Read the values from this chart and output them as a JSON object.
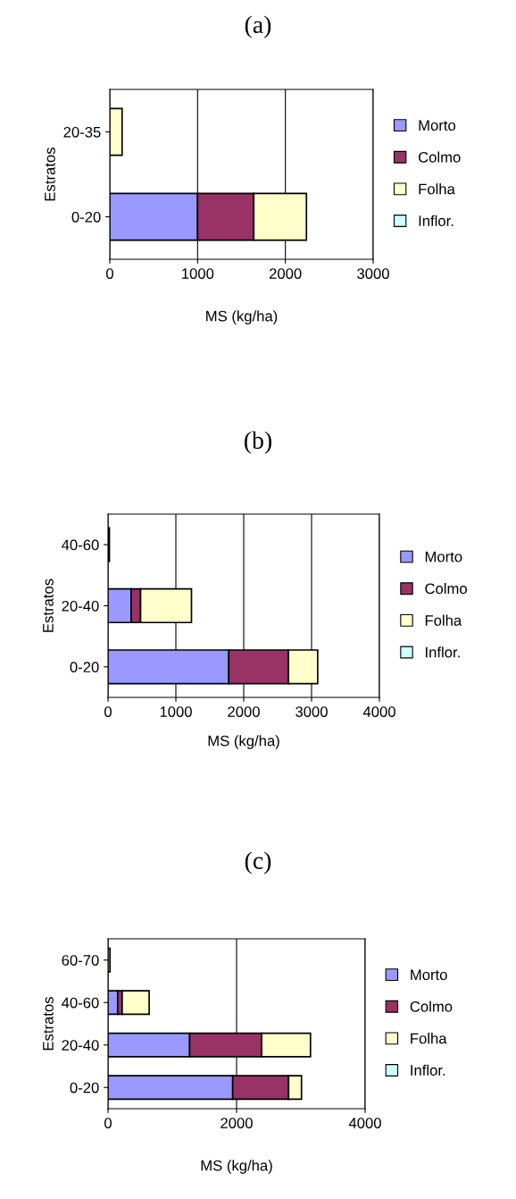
{
  "chart_data": [
    {
      "type": "bar",
      "orientation": "horizontal",
      "stacked": true,
      "title": "(a)",
      "xlabel": "MS (kg/ha)",
      "ylabel": "Estratos",
      "categories": [
        "20-35",
        "0-20"
      ],
      "xlim": [
        0,
        3000
      ],
      "xticks": [
        0,
        1000,
        2000,
        3000
      ],
      "grid": "x",
      "legend": "right",
      "series": [
        {
          "name": "Morto",
          "color": "#9999ff",
          "values": [
            null,
            1000
          ]
        },
        {
          "name": "Colmo",
          "color": "#993366",
          "values": [
            null,
            640
          ]
        },
        {
          "name": "Folha",
          "color": "#ffffcc",
          "values": [
            140,
            600
          ]
        },
        {
          "name": "Inflor.",
          "color": "#ccffff",
          "values": [
            null,
            null
          ]
        }
      ]
    },
    {
      "type": "bar",
      "orientation": "horizontal",
      "stacked": true,
      "title": "(b)",
      "xlabel": "MS (kg/ha)",
      "ylabel": "Estratos",
      "categories": [
        "40-60",
        "20-40",
        "0-20"
      ],
      "xlim": [
        0,
        4000
      ],
      "xticks": [
        0,
        1000,
        2000,
        3000,
        4000
      ],
      "grid": "x",
      "legend": "right",
      "series": [
        {
          "name": "Morto",
          "color": "#9999ff",
          "values": [
            null,
            340,
            1780
          ]
        },
        {
          "name": "Colmo",
          "color": "#993366",
          "values": [
            null,
            140,
            880
          ]
        },
        {
          "name": "Folha",
          "color": "#ffffcc",
          "values": [
            20,
            750,
            430
          ]
        },
        {
          "name": "Inflor.",
          "color": "#ccffff",
          "values": [
            null,
            null,
            null
          ]
        }
      ]
    },
    {
      "type": "bar",
      "orientation": "horizontal",
      "stacked": true,
      "title": "(c)",
      "xlabel": "MS (kg/ha)",
      "ylabel": "Estratos",
      "categories": [
        "60-70",
        "40-60",
        "20-40",
        "0-20"
      ],
      "xlim": [
        0,
        4000
      ],
      "xticks": [
        0,
        2000,
        4000
      ],
      "grid": "x",
      "legend": "right",
      "series": [
        {
          "name": "Morto",
          "color": "#9999ff",
          "values": [
            null,
            150,
            1270,
            1940
          ]
        },
        {
          "name": "Colmo",
          "color": "#993366",
          "values": [
            null,
            70,
            1120,
            870
          ]
        },
        {
          "name": "Folha",
          "color": "#ffffcc",
          "values": [
            30,
            420,
            760,
            200
          ]
        },
        {
          "name": "Inflor.",
          "color": "#ccffff",
          "values": [
            null,
            null,
            null,
            null
          ]
        }
      ]
    }
  ]
}
